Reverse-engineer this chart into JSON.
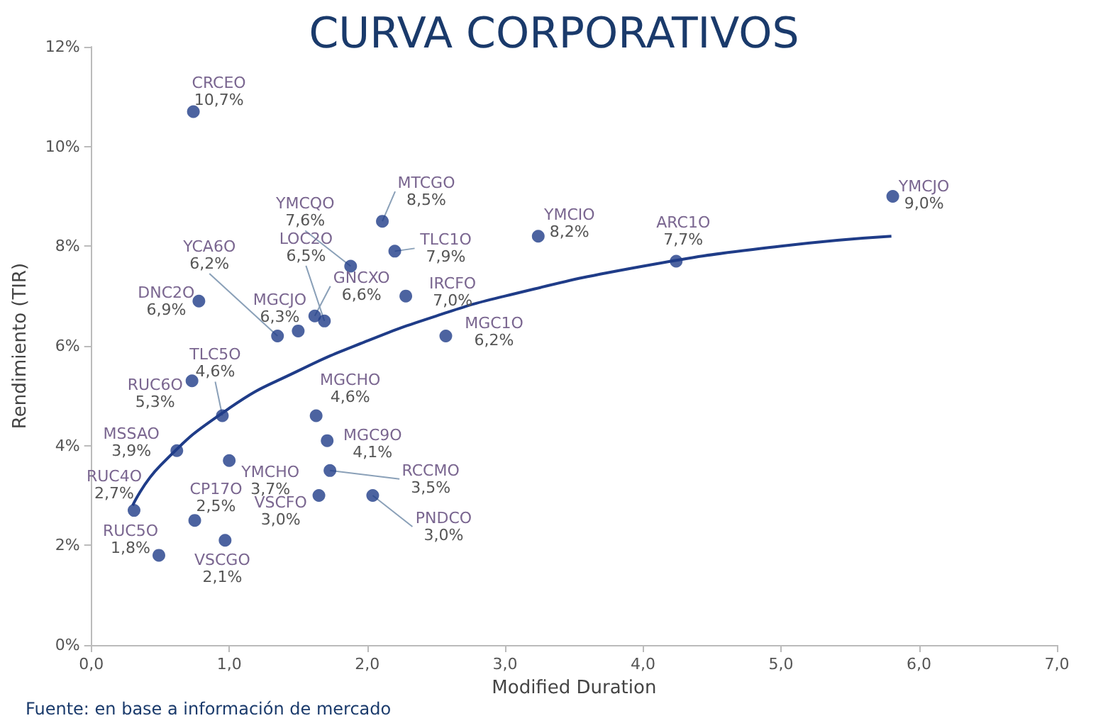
{
  "chart_data": {
    "type": "scatter",
    "title": "CURVA CORPORATIVOS",
    "xlabel": "Modified Duration",
    "ylabel": "Rendimiento (TIR)",
    "xlim": [
      0,
      7
    ],
    "xticks": [
      {
        "value": 0,
        "label": "0,0"
      },
      {
        "value": 1,
        "label": "1,0"
      },
      {
        "value": 2,
        "label": "2,0"
      },
      {
        "value": 3,
        "label": "3,0"
      },
      {
        "value": 4,
        "label": "4,0"
      },
      {
        "value": 5,
        "label": "5,0"
      },
      {
        "value": 6,
        "label": "6,0"
      },
      {
        "value": 7,
        "label": "7,0"
      }
    ],
    "ylim": [
      0,
      12
    ],
    "yticks": [
      {
        "value": 0,
        "label": "0%"
      },
      {
        "value": 2,
        "label": "2%"
      },
      {
        "value": 4,
        "label": "4%"
      },
      {
        "value": 6,
        "label": "6%"
      },
      {
        "value": 8,
        "label": "8%"
      },
      {
        "value": 10,
        "label": "10%"
      },
      {
        "value": 12,
        "label": "12%"
      }
    ],
    "marker": "circle",
    "series": [
      {
        "color": "#1f3c88",
        "x": [
          0.74,
          1.88,
          2.11,
          2.2,
          3.24,
          5.81,
          4.24,
          2.28,
          2.57,
          0.78,
          1.35,
          1.5,
          1.69,
          1.62,
          0.95,
          0.73,
          1.63,
          0.62,
          1.0,
          1.71,
          0.31,
          1.73,
          0.75,
          1.65,
          2.04,
          0.49,
          0.97
        ],
        "values": [
          10.7,
          7.6,
          8.5,
          7.9,
          8.2,
          9.0,
          7.7,
          7.0,
          6.2,
          6.9,
          6.2,
          6.3,
          6.5,
          6.6,
          4.6,
          5.3,
          4.6,
          3.9,
          3.7,
          4.1,
          2.7,
          3.5,
          2.5,
          3.0,
          3.0,
          1.8,
          2.1
        ],
        "value_labels": [
          "10,7%",
          "7,6%",
          "8,5%",
          "7,9%",
          "8,2%",
          "9,0%",
          "7,7%",
          "7,0%",
          "6,2%",
          "6,9%",
          "6,2%",
          "6,3%",
          "6,5%",
          "6,6%",
          "4,6%",
          "5,3%",
          "4,6%",
          "3,9%",
          "3,7%",
          "4,1%",
          "2,7%",
          "3,5%",
          "2,5%",
          "3,0%",
          "3,0%",
          "1,8%",
          "2,1%"
        ]
      },
      {
        "type": "line",
        "color": "#1f3c88",
        "marker": "none",
        "x": [
          0.3,
          0.5,
          1,
          1.5,
          2,
          2.5,
          3,
          4,
          5,
          5.8
        ],
        "values": [
          2.8,
          3.6,
          4.75,
          5.5,
          6.1,
          6.6,
          7.0,
          7.6,
          8.0,
          8.2
        ]
      }
    ],
    "annotations": [
      {
        "text": "CRCEO",
        "x": 0.74,
        "y": 10.7
      },
      {
        "text": "YMCQO",
        "x": 1.88,
        "y": 7.6
      },
      {
        "text": "MTCGO",
        "x": 2.11,
        "y": 8.5
      },
      {
        "text": "TLC1O",
        "x": 2.2,
        "y": 7.9
      },
      {
        "text": "YMCIO",
        "x": 3.24,
        "y": 8.2
      },
      {
        "text": "YMCJO",
        "x": 5.81,
        "y": 9.0
      },
      {
        "text": "ARC1O",
        "x": 4.24,
        "y": 7.7
      },
      {
        "text": "IRCFO",
        "x": 2.28,
        "y": 7.0
      },
      {
        "text": "MGC1O",
        "x": 2.57,
        "y": 6.2
      },
      {
        "text": "DNC2O",
        "x": 0.78,
        "y": 6.9
      },
      {
        "text": "YCA6O",
        "x": 1.35,
        "y": 6.2
      },
      {
        "text": "MGCJO",
        "x": 1.5,
        "y": 6.3
      },
      {
        "text": "LOC2O",
        "x": 1.69,
        "y": 6.5
      },
      {
        "text": "GNCXO",
        "x": 1.62,
        "y": 6.6
      },
      {
        "text": "TLC5O",
        "x": 0.95,
        "y": 4.6
      },
      {
        "text": "RUC6O",
        "x": 0.73,
        "y": 5.3
      },
      {
        "text": "MGCHO",
        "x": 1.63,
        "y": 4.6
      },
      {
        "text": "MSSAO",
        "x": 0.62,
        "y": 3.9
      },
      {
        "text": "YMCHO",
        "x": 1.0,
        "y": 3.7
      },
      {
        "text": "MGC9O",
        "x": 1.71,
        "y": 4.1
      },
      {
        "text": "RUC4O",
        "x": 0.31,
        "y": 2.7
      },
      {
        "text": "RCCMO",
        "x": 1.73,
        "y": 3.5
      },
      {
        "text": "CP17O",
        "x": 0.75,
        "y": 2.5
      },
      {
        "text": "VSCFO",
        "x": 1.65,
        "y": 3.0
      },
      {
        "text": "PNDCO",
        "x": 2.04,
        "y": 3.0
      },
      {
        "text": "RUC5O",
        "x": 0.49,
        "y": 1.8
      },
      {
        "text": "VSCGO",
        "x": 0.97,
        "y": 2.1
      },
      "Fuente: en base a información de mercado"
    ]
  }
}
